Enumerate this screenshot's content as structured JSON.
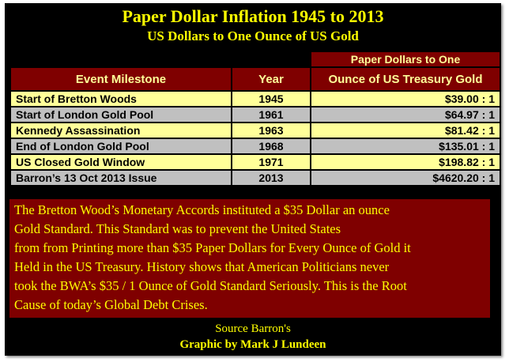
{
  "header": {
    "title": "Paper Dollar Inflation 1945 to 2013",
    "subtitle": "US Dollars to One Ounce of US Gold"
  },
  "table": {
    "super_header": "Paper Dollars to One",
    "headers": [
      "Event Milestone",
      "Year",
      "Ounce of US Treasury Gold"
    ],
    "rows": [
      [
        "Start of Bretton Woods",
        "1945",
        "$39.00 : 1"
      ],
      [
        "Start of London Gold Pool",
        "1961",
        "$64.97 : 1"
      ],
      [
        "Kennedy Assassination",
        "1963",
        "$81.42 : 1"
      ],
      [
        "End of London Gold Pool",
        "1968",
        "$135.01 : 1"
      ],
      [
        "US Closed Gold Window",
        "1971",
        "$198.82 : 1"
      ],
      [
        "Barron’s 13 Oct  2013 Issue",
        "2013",
        "$4620.20 : 1"
      ]
    ]
  },
  "note": {
    "lines": [
      "The Bretton Wood’s Monetary Accords instituted a $35 Dollar an ounce",
      "Gold Standard.  This Standard was to prevent the United States",
      "from from Printing more than $35 Paper Dollars for Every Ounce of Gold it",
      "Held in the US Treasury. History shows that American Politicians never",
      "took the BWA’s $35 / 1 Ounce of Gold Standard Seriously.  This is the Root",
      "Cause of today’s Global Debt Crises."
    ]
  },
  "footer": {
    "source": "Source Barron's",
    "credit": "Graphic by Mark J Lundeen"
  }
}
